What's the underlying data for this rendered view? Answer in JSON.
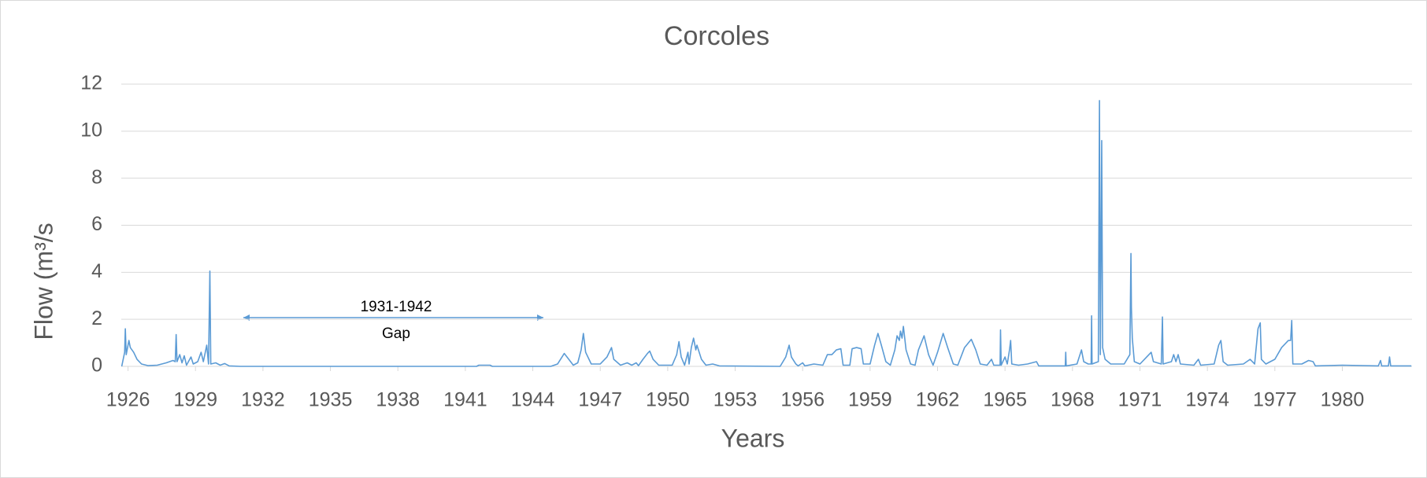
{
  "chart_data": {
    "type": "line",
    "title": "Corcoles",
    "xlabel": "Years",
    "ylabel": "Flow (m³/s",
    "annotations": [
      "1931-1942",
      "Gap"
    ],
    "color": "#5b9bd5",
    "grid": true,
    "xlim": [
      1925.7,
      1983.1
    ],
    "xticks": [
      1926,
      1929,
      1932,
      1935,
      1938,
      1941,
      1944,
      1947,
      1950,
      1953,
      1956,
      1959,
      1962,
      1965,
      1968,
      1971,
      1974,
      1977,
      1980
    ],
    "ylim": [
      0,
      12
    ],
    "yticks": [
      0,
      2,
      4,
      6,
      8,
      10,
      12
    ],
    "x": [
      1925.72,
      1925.85,
      1925.88,
      1925.92,
      1926.0,
      1926.04,
      1926.1,
      1926.25,
      1926.4,
      1926.6,
      1926.9,
      1927.3,
      1927.7,
      1928.0,
      1928.1,
      1928.14,
      1928.18,
      1928.3,
      1928.4,
      1928.5,
      1928.6,
      1928.8,
      1928.9,
      1929.1,
      1929.25,
      1929.35,
      1929.5,
      1929.58,
      1929.64,
      1929.68,
      1929.9,
      1930.1,
      1930.3,
      1930.5,
      1931.0,
      1941.5,
      1941.6,
      1942.1,
      1942.2,
      1944.8,
      1945.1,
      1945.4,
      1945.6,
      1945.8,
      1946.0,
      1946.15,
      1946.25,
      1946.35,
      1946.6,
      1947.0,
      1947.3,
      1947.5,
      1947.6,
      1947.9,
      1948.2,
      1948.4,
      1948.6,
      1948.7,
      1948.9,
      1949.1,
      1949.2,
      1949.35,
      1949.6,
      1950.2,
      1950.4,
      1950.5,
      1950.6,
      1950.75,
      1950.9,
      1950.95,
      1951.05,
      1951.15,
      1951.25,
      1951.3,
      1951.5,
      1951.7,
      1952.0,
      1952.3,
      1955.0,
      1955.25,
      1955.4,
      1955.5,
      1955.7,
      1955.8,
      1956.0,
      1956.1,
      1956.5,
      1956.9,
      1957.1,
      1957.3,
      1957.5,
      1957.7,
      1957.8,
      1958.1,
      1958.2,
      1958.4,
      1958.6,
      1958.7,
      1959.0,
      1959.2,
      1959.35,
      1959.5,
      1959.7,
      1959.9,
      1960.1,
      1960.2,
      1960.3,
      1960.35,
      1960.42,
      1960.48,
      1960.6,
      1960.8,
      1961.0,
      1961.15,
      1961.4,
      1961.6,
      1961.8,
      1962.0,
      1962.25,
      1962.45,
      1962.7,
      1962.9,
      1963.2,
      1963.5,
      1963.7,
      1963.9,
      1964.2,
      1964.4,
      1964.5,
      1964.78,
      1964.8,
      1964.83,
      1965.0,
      1965.1,
      1965.2,
      1965.25,
      1965.3,
      1965.6,
      1966.0,
      1966.4,
      1966.5,
      1967.68,
      1967.7,
      1967.72,
      1968.2,
      1968.4,
      1968.5,
      1968.7,
      1968.83,
      1968.85,
      1968.87,
      1969.15,
      1969.2,
      1969.24,
      1969.3,
      1969.34,
      1969.45,
      1969.7,
      1970.3,
      1970.55,
      1970.6,
      1970.62,
      1970.66,
      1970.75,
      1971.0,
      1971.3,
      1971.5,
      1971.6,
      1971.95,
      1972.0,
      1972.03,
      1972.4,
      1972.5,
      1972.6,
      1972.7,
      1972.8,
      1973.4,
      1973.6,
      1973.7,
      1974.3,
      1974.5,
      1974.6,
      1974.7,
      1974.9,
      1975.6,
      1975.9,
      1976.1,
      1976.25,
      1976.35,
      1976.4,
      1976.6,
      1977.0,
      1977.3,
      1977.6,
      1977.7,
      1977.75,
      1977.8,
      1978.2,
      1978.5,
      1978.7,
      1978.8,
      1980.0,
      1981.6,
      1981.7,
      1981.75,
      1982.05,
      1982.1,
      1982.15,
      1983.07
    ],
    "values": [
      0,
      0.6,
      1.6,
      0.5,
      0.9,
      1.1,
      0.8,
      0.6,
      0.3,
      0.1,
      0.03,
      0.05,
      0.15,
      0.25,
      0.2,
      1.35,
      0.2,
      0.5,
      0.15,
      0.45,
      0.05,
      0.4,
      0.1,
      0.2,
      0.6,
      0.2,
      0.9,
      0.1,
      4.05,
      0.1,
      0.15,
      0.05,
      0.12,
      0.02,
      0,
      0,
      0.05,
      0.05,
      0,
      0,
      0.1,
      0.55,
      0.3,
      0.05,
      0.15,
      0.7,
      1.4,
      0.6,
      0.1,
      0.1,
      0.4,
      0.8,
      0.3,
      0.05,
      0.15,
      0.05,
      0.15,
      0.03,
      0.3,
      0.55,
      0.65,
      0.3,
      0.05,
      0.05,
      0.5,
      1.05,
      0.4,
      0.05,
      0.6,
      0.1,
      0.8,
      1.2,
      0.7,
      0.9,
      0.3,
      0.05,
      0.1,
      0.02,
      0,
      0.4,
      0.9,
      0.4,
      0.1,
      0.02,
      0.15,
      0.02,
      0.1,
      0.05,
      0.5,
      0.5,
      0.7,
      0.75,
      0.05,
      0.05,
      0.75,
      0.8,
      0.75,
      0.1,
      0.1,
      0.9,
      1.4,
      0.9,
      0.2,
      0.05,
      0.7,
      1.3,
      1.1,
      1.5,
      1.2,
      1.7,
      0.7,
      0.1,
      0.05,
      0.7,
      1.3,
      0.5,
      0.05,
      0.6,
      1.4,
      0.8,
      0.1,
      0.05,
      0.8,
      1.15,
      0.7,
      0.1,
      0.05,
      0.3,
      0.05,
      0.05,
      1.55,
      0.05,
      0.4,
      0.1,
      0.7,
      1.1,
      0.1,
      0.05,
      0.1,
      0.2,
      0.02,
      0.02,
      0.6,
      0.02,
      0.1,
      0.7,
      0.2,
      0.1,
      0.1,
      2.15,
      0.1,
      0.2,
      11.3,
      0.5,
      9.6,
      0.8,
      0.3,
      0.1,
      0.1,
      0.5,
      4.8,
      2.5,
      1.2,
      0.2,
      0.1,
      0.4,
      0.6,
      0.2,
      0.1,
      2.1,
      0.1,
      0.2,
      0.5,
      0.2,
      0.5,
      0.1,
      0.05,
      0.3,
      0.05,
      0.1,
      0.9,
      1.1,
      0.2,
      0.05,
      0.1,
      0.3,
      0.1,
      1.6,
      1.85,
      0.3,
      0.1,
      0.3,
      0.8,
      1.1,
      1.1,
      1.95,
      0.1,
      0.1,
      0.25,
      0.2,
      0.02,
      0.05,
      0.02,
      0.25,
      0.02,
      0.02,
      0.4,
      0.02,
      0.02
    ]
  }
}
